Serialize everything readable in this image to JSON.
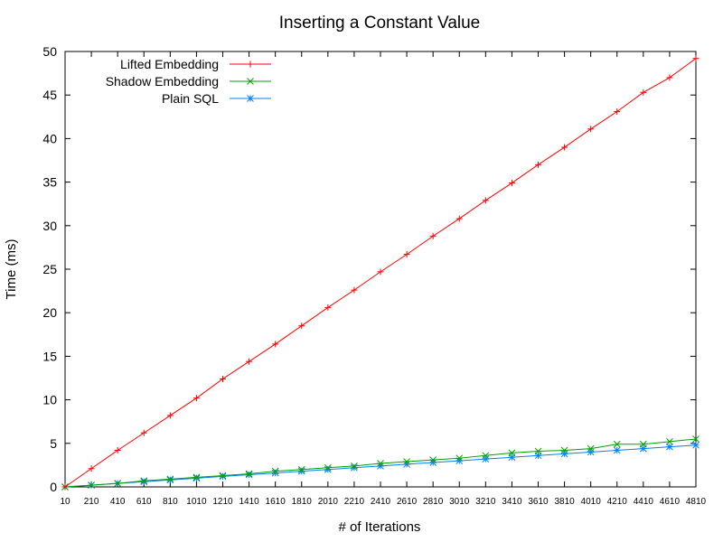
{
  "chart_data": {
    "type": "line",
    "title": "Inserting a Constant Value",
    "xlabel": "# of Iterations",
    "ylabel": "Time (ms)",
    "xlim": [
      10,
      4810
    ],
    "ylim": [
      0,
      50
    ],
    "yticks": [
      0,
      5,
      10,
      15,
      20,
      25,
      30,
      35,
      40,
      45,
      50
    ],
    "x": [
      10,
      210,
      410,
      610,
      810,
      1010,
      1210,
      1410,
      1610,
      1810,
      2010,
      2210,
      2410,
      2610,
      2810,
      3010,
      3210,
      3410,
      3610,
      3810,
      4010,
      4210,
      4410,
      4610,
      4810
    ],
    "grid": false,
    "legend_position": "top-left",
    "series": [
      {
        "name": "Lifted Embedding",
        "color": "#ff0000",
        "marker": "plus",
        "values": [
          0.0,
          2.1,
          4.2,
          6.2,
          8.2,
          10.2,
          12.4,
          14.4,
          16.4,
          18.5,
          20.6,
          22.6,
          24.7,
          26.7,
          28.8,
          30.8,
          32.9,
          34.9,
          37.0,
          39.0,
          41.1,
          43.1,
          45.3,
          47.0,
          49.2
        ]
      },
      {
        "name": "Shadow Embedding",
        "color": "#00a000",
        "marker": "x",
        "values": [
          0.0,
          0.2,
          0.4,
          0.7,
          0.9,
          1.1,
          1.3,
          1.5,
          1.8,
          2.0,
          2.2,
          2.4,
          2.7,
          2.9,
          3.1,
          3.3,
          3.6,
          3.9,
          4.1,
          4.2,
          4.4,
          4.9,
          4.9,
          5.2,
          5.5
        ]
      },
      {
        "name": "Plain SQL",
        "color": "#0080ff",
        "marker": "star",
        "values": [
          0.0,
          0.2,
          0.4,
          0.6,
          0.8,
          1.0,
          1.2,
          1.4,
          1.6,
          1.8,
          2.0,
          2.2,
          2.4,
          2.6,
          2.8,
          3.0,
          3.2,
          3.4,
          3.6,
          3.8,
          4.0,
          4.2,
          4.4,
          4.6,
          4.8
        ]
      }
    ]
  }
}
